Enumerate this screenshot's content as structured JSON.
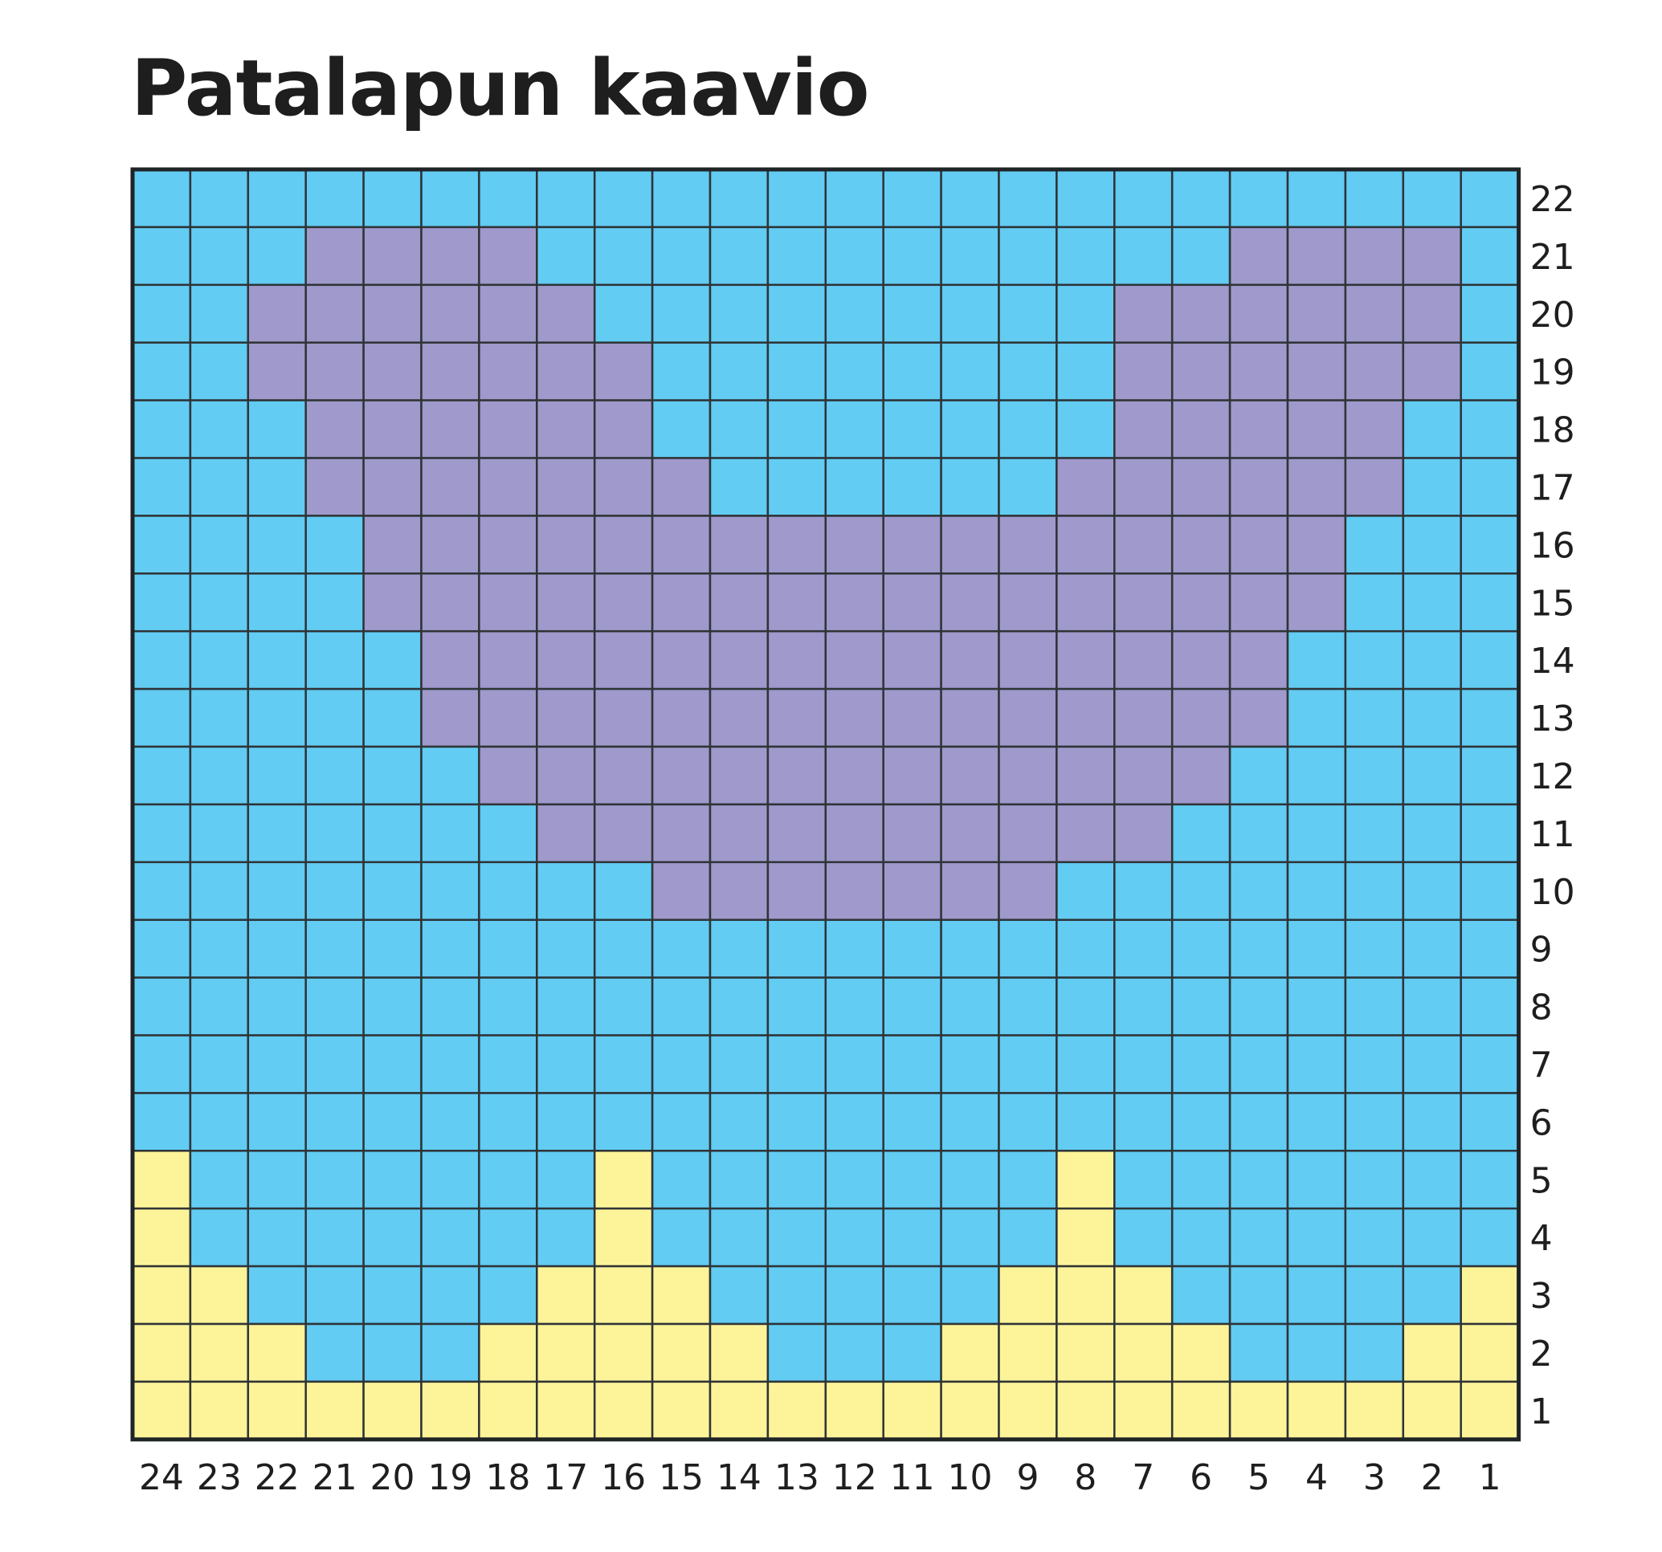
{
  "title": "Patalapun kaavio",
  "chart_data": {
    "type": "heatmap",
    "columns": [
      "24",
      "23",
      "22",
      "21",
      "20",
      "19",
      "18",
      "17",
      "16",
      "15",
      "14",
      "13",
      "12",
      "11",
      "10",
      "9",
      "8",
      "7",
      "6",
      "5",
      "4",
      "3",
      "2",
      "1"
    ],
    "rows": [
      "22",
      "21",
      "20",
      "19",
      "18",
      "17",
      "16",
      "15",
      "14",
      "13",
      "12",
      "11",
      "10",
      "9",
      "8",
      "7",
      "6",
      "5",
      "4",
      "3",
      "2",
      "1"
    ],
    "colors": {
      "B": "#62ccf3",
      "P": "#9f99cc",
      "Y": "#fdf499"
    },
    "grid": [
      "BBBBBBBBBBBBBBBBBBBBBBBB",
      "BBBPPPPBBBBBBBBBBBBPPPPB",
      "BBPPPPPPBBBBBBBBBPPPPPPB",
      "BBPPPPPPPBBBBBBBBPPPPPPB",
      "BBBPPPPPPBBBBBBBBPPPPPBB",
      "BBBPPPPPPPBBBBBBPPPPPPBB",
      "BBBBPPPPPPPPPPPPPPPPPBBB",
      "BBBBPPPPPPPPPPPPPPPPPBBB",
      "BBBBBPPPPPPPPPPPPPPPBBBB",
      "BBBBBPPPPPPPPPPPPPPPBBBB",
      "BBBBBBPPPPPPPPPPPPPBBBBB",
      "BBBBBBBPPPPPPPPPPPBBBBBB",
      "BBBBBBBBBPPPPPPPBBBBBBBB",
      "BBBBBBBBBBBBBBBBBBBBBBBB",
      "BBBBBBBBBBBBBBBBBBBBBBBB",
      "BBBBBBBBBBBBBBBBBBBBBBBB",
      "BBBBBBBBBBBBBBBBBBBBBBBB",
      "YBBBBBBBYBBBBBBBYBBBBBBB",
      "YBBBBBBBYBBBBBBBYBBBBBBB",
      "YYBBBBBYYYBBBBBYYYBBBBBY",
      "YYYBBBYYYYYBBBYYYYYBBBYY",
      "YYYYYYYYYYYYYYYYYYYYYYYY"
    ]
  }
}
